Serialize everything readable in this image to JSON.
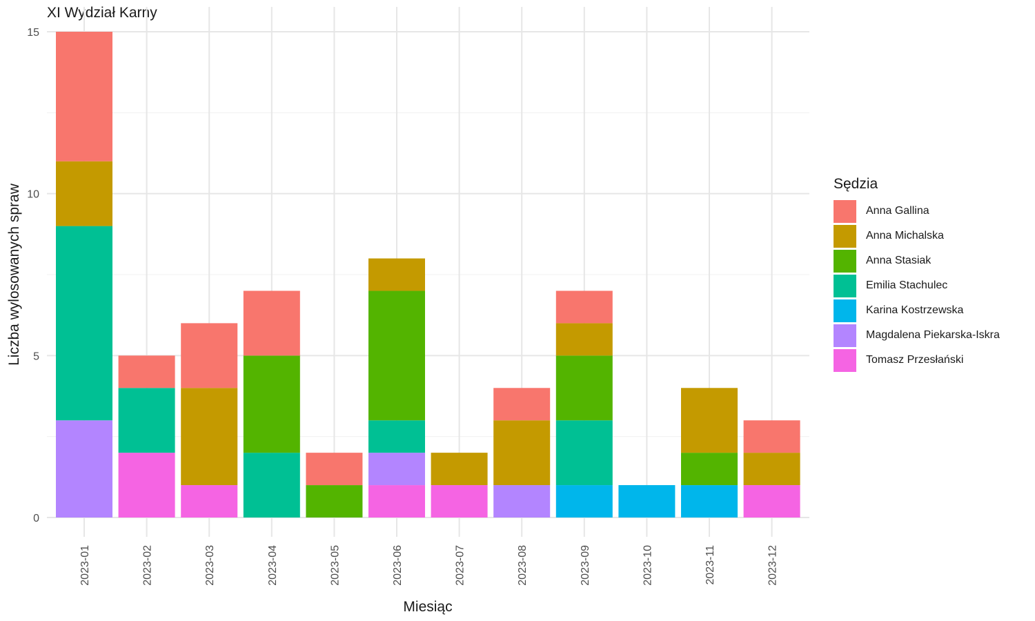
{
  "chart_data": {
    "type": "bar",
    "stacked": true,
    "title": "XI Wydział Karny",
    "xlabel": "Miesiąc",
    "ylabel": "Liczba wylosowanych spraw",
    "ylim": [
      0,
      15
    ],
    "yticks": [
      0,
      5,
      10,
      15
    ],
    "grid": true,
    "legend_title": "Sędzia",
    "legend_position": "right",
    "categories": [
      "2023-01",
      "2023-02",
      "2023-03",
      "2023-04",
      "2023-05",
      "2023-06",
      "2023-07",
      "2023-08",
      "2023-09",
      "2023-10",
      "2023-11",
      "2023-12"
    ],
    "series": [
      {
        "name": "Tomasz Przesłański",
        "color": "#F564E3",
        "values": [
          0,
          2,
          1,
          0,
          0,
          1,
          1,
          0,
          0,
          0,
          0,
          1
        ]
      },
      {
        "name": "Magdalena Piekarska-Iskra",
        "color": "#B385FF",
        "values": [
          3,
          0,
          0,
          0,
          0,
          1,
          0,
          1,
          0,
          0,
          0,
          0
        ]
      },
      {
        "name": "Karina Kostrzewska",
        "color": "#00B6EB",
        "values": [
          0,
          0,
          0,
          0,
          0,
          0,
          0,
          0,
          1,
          1,
          1,
          0
        ]
      },
      {
        "name": "Emilia Stachulec",
        "color": "#00C094",
        "values": [
          6,
          2,
          0,
          2,
          0,
          1,
          0,
          0,
          2,
          0,
          0,
          0
        ]
      },
      {
        "name": "Anna Stasiak",
        "color": "#53B400",
        "values": [
          0,
          0,
          0,
          3,
          1,
          4,
          0,
          0,
          2,
          0,
          1,
          0
        ]
      },
      {
        "name": "Anna Michalska",
        "color": "#C49A00",
        "values": [
          2,
          0,
          3,
          0,
          0,
          1,
          1,
          2,
          1,
          0,
          2,
          1
        ]
      },
      {
        "name": "Anna Gallina",
        "color": "#F8766D",
        "values": [
          4,
          1,
          2,
          2,
          1,
          0,
          0,
          1,
          1,
          0,
          0,
          1
        ]
      }
    ],
    "legend_order": [
      "Anna Gallina",
      "Anna Michalska",
      "Anna Stasiak",
      "Emilia Stachulec",
      "Karina Kostrzewska",
      "Magdalena Piekarska-Iskra",
      "Tomasz Przesłański"
    ]
  }
}
